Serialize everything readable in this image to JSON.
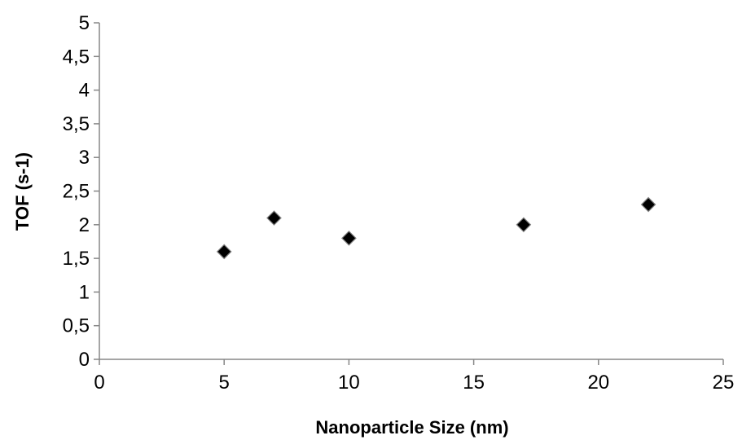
{
  "chart_data": {
    "type": "scatter",
    "title": "",
    "xlabel": "Nanoparticle Size (nm)",
    "ylabel": "TOF (s-1)",
    "xlim": [
      0,
      25
    ],
    "ylim": [
      0,
      5
    ],
    "x_ticks": [
      "0",
      "5",
      "10",
      "15",
      "20",
      "25"
    ],
    "y_ticks": [
      "0",
      "0,5",
      "1",
      "1,5",
      "2",
      "2,5",
      "3",
      "3,5",
      "4",
      "4,5",
      "5"
    ],
    "grid": false,
    "legend": "none",
    "marker": "diamond",
    "colors": {
      "marker_fill": "#000000",
      "marker_edge": "#808080",
      "axis": "#878787"
    },
    "series": [
      {
        "points": [
          {
            "x": 5,
            "y": 1.6
          },
          {
            "x": 7,
            "y": 2.1
          },
          {
            "x": 10,
            "y": 1.8
          },
          {
            "x": 17,
            "y": 2.0
          },
          {
            "x": 22,
            "y": 2.3
          }
        ]
      }
    ]
  }
}
